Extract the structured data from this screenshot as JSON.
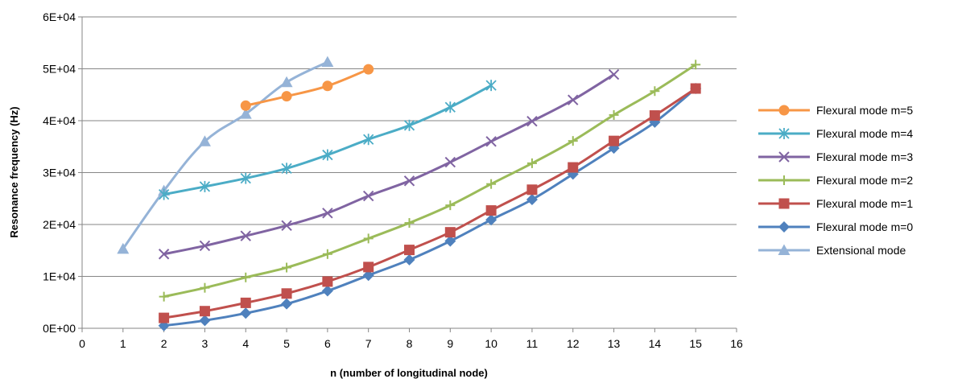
{
  "chart_data": {
    "type": "line",
    "xlabel": "n (number of longitudinal node)",
    "ylabel": "Resonance frequency (Hz)",
    "xlim": [
      0,
      16
    ],
    "ylim": [
      0,
      60000
    ],
    "x_ticks": [
      "0",
      "1",
      "2",
      "3",
      "4",
      "5",
      "6",
      "7",
      "8",
      "9",
      "10",
      "11",
      "12",
      "13",
      "14",
      "15",
      "16"
    ],
    "y_ticks": [
      "0E+00",
      "1E+04",
      "2E+04",
      "3E+04",
      "4E+04",
      "5E+04",
      "6E+04"
    ],
    "grid": "horizontal",
    "legend_position": "right",
    "series": [
      {
        "name": "Flexural mode m=5",
        "color": "#f79646",
        "marker": "circle",
        "x": [
          4,
          5,
          6,
          7
        ],
        "y": [
          42900,
          44700,
          46700,
          49900
        ]
      },
      {
        "name": "Flexural mode m=4",
        "color": "#4bacc6",
        "marker": "asterisk",
        "x": [
          2,
          3,
          4,
          5,
          6,
          7,
          8,
          9,
          10
        ],
        "y": [
          25800,
          27300,
          28900,
          30800,
          33400,
          36400,
          39100,
          42600,
          46800
        ]
      },
      {
        "name": "Flexural mode m=3",
        "color": "#8064a2",
        "marker": "x",
        "x": [
          2,
          3,
          4,
          5,
          6,
          7,
          8,
          9,
          10,
          11,
          12,
          13
        ],
        "y": [
          14300,
          15900,
          17800,
          19800,
          22200,
          25500,
          28400,
          32000,
          36000,
          39900,
          44000,
          48900
        ]
      },
      {
        "name": "Flexural mode m=2",
        "color": "#9bbb59",
        "marker": "plus",
        "x": [
          2,
          3,
          4,
          5,
          6,
          7,
          8,
          9,
          10,
          11,
          12,
          13,
          14,
          15
        ],
        "y": [
          6100,
          7800,
          9800,
          11700,
          14300,
          17300,
          20300,
          23700,
          27800,
          31800,
          36100,
          41100,
          45700,
          50800
        ]
      },
      {
        "name": "Flexural mode m=1",
        "color": "#c0504d",
        "marker": "square",
        "x": [
          2,
          3,
          4,
          5,
          6,
          7,
          8,
          9,
          10,
          11,
          12,
          13,
          14,
          15
        ],
        "y": [
          2000,
          3300,
          4900,
          6700,
          9000,
          11800,
          15100,
          18500,
          22700,
          26700,
          31000,
          36100,
          41000,
          46200
        ]
      },
      {
        "name": "Flexural mode m=0",
        "color": "#4f81bd",
        "marker": "diamond",
        "x": [
          2,
          3,
          4,
          5,
          6,
          7,
          8,
          9,
          10,
          11,
          12,
          13,
          14,
          15
        ],
        "y": [
          500,
          1500,
          2900,
          4700,
          7200,
          10200,
          13200,
          16800,
          20900,
          24800,
          29700,
          34700,
          39700,
          46200
        ]
      },
      {
        "name": "Extensional mode",
        "color": "#95b3d7",
        "marker": "triangle",
        "x": [
          1,
          2,
          3,
          4,
          5,
          6
        ],
        "y": [
          15300,
          26500,
          36000,
          41300,
          47400,
          51300
        ]
      }
    ]
  }
}
